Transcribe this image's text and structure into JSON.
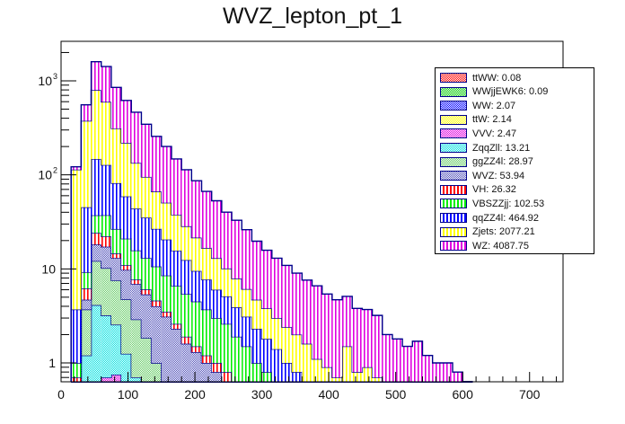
{
  "chart_data": {
    "type": "bar",
    "subtype": "stacked-histogram",
    "title": "WVZ_lepton_pt_1",
    "xlabel": "",
    "ylabel": "",
    "xlim": [
      0,
      750
    ],
    "ylim": [
      0.63,
      2630
    ],
    "yscale": "log",
    "x_ticks": [
      "0",
      "100",
      "200",
      "300",
      "400",
      "500",
      "600",
      "700"
    ],
    "y_ticks": [
      {
        "value": 1,
        "label": "1"
      },
      {
        "value": 10,
        "label": "10"
      },
      {
        "value": 100,
        "label": "10",
        "exp": "2"
      },
      {
        "value": 1000,
        "label": "10",
        "exp": "3"
      }
    ],
    "bin_edges_start": 15,
    "bin_width": 15,
    "legend_position": "top-right",
    "series": [
      {
        "name": "ttWW",
        "label": "ttWW: 0.08",
        "color": "#ff0000",
        "pattern": "hatch",
        "values": [
          0,
          0,
          0,
          0,
          0,
          0,
          0,
          0,
          0,
          0,
          0,
          0,
          0,
          0,
          0,
          0,
          0,
          0,
          0,
          0,
          0,
          0,
          0,
          0,
          0,
          0,
          0,
          0,
          0,
          0,
          0,
          0,
          0,
          0,
          0,
          0,
          0,
          0,
          0,
          0
        ]
      },
      {
        "name": "WWjjEWK6",
        "label": "WWjjEWK6: 0.09",
        "color": "#00cc00",
        "pattern": "hatch",
        "values": [
          0,
          0,
          0,
          0,
          0,
          0,
          0,
          0,
          0,
          0,
          0,
          0,
          0,
          0,
          0,
          0,
          0,
          0,
          0,
          0,
          0,
          0,
          0,
          0,
          0,
          0,
          0,
          0,
          0,
          0,
          0,
          0,
          0,
          0,
          0,
          0,
          0,
          0,
          0,
          0
        ]
      },
      {
        "name": "WW",
        "label": "WW: 2.07",
        "color": "#0000ff",
        "pattern": "hatch",
        "values": [
          0,
          0,
          0.1,
          0.1,
          0.1,
          0.05,
          0,
          0,
          0,
          0,
          0,
          0,
          0,
          0,
          0,
          0,
          0,
          0,
          0,
          0,
          0,
          0,
          0,
          0,
          0,
          0,
          0,
          0,
          0,
          0,
          0,
          0,
          0,
          0,
          0,
          0,
          0,
          0,
          0,
          0
        ]
      },
      {
        "name": "ttW",
        "label": "ttW: 2.14",
        "color": "#ffff00",
        "pattern": "hatch",
        "values": [
          0,
          0,
          0.02,
          0.05,
          0.3,
          0.05,
          0.05,
          0,
          0,
          0,
          0,
          0,
          0,
          0,
          0,
          0,
          0,
          0,
          0,
          0,
          0,
          0,
          0,
          0,
          0,
          0,
          0,
          0,
          0,
          0,
          0,
          0,
          0,
          0,
          0,
          0,
          0,
          0,
          0,
          0
        ]
      },
      {
        "name": "VVV",
        "label": "VVV: 2.47",
        "color": "#e000e0",
        "pattern": "hatch",
        "values": [
          0,
          0,
          0.4,
          0.55,
          0.35,
          0.15,
          0.05,
          0.05,
          0,
          0,
          0,
          0,
          0,
          0,
          0,
          0,
          0,
          0,
          0,
          0,
          0,
          0,
          0,
          0,
          0,
          0,
          0,
          0,
          0,
          0,
          0,
          0,
          0,
          0,
          0,
          0,
          0,
          0,
          0,
          0
        ]
      },
      {
        "name": "ZqqZll",
        "label": "ZqqZll: 13.21",
        "color": "#00e0e0",
        "pattern": "hatch",
        "values": [
          0,
          1.2,
          3.6,
          2.5,
          1.8,
          1.0,
          0.6,
          0.3,
          0,
          0,
          0,
          0,
          0,
          0,
          0,
          0,
          0,
          0,
          0,
          0,
          0,
          0,
          0,
          0,
          0,
          0,
          0,
          0,
          0,
          0,
          0,
          0,
          0,
          0,
          0,
          0,
          0,
          0,
          0,
          0
        ]
      },
      {
        "name": "ggZZ4l",
        "label": "ggZZ4l: 28.97",
        "color": "#66cc66",
        "pattern": "hatch",
        "values": [
          0,
          2.5,
          8,
          7,
          5,
          3.5,
          2.2,
          1.5,
          1.0,
          0.6,
          0.3,
          0,
          0,
          0,
          0,
          0,
          0,
          0,
          0,
          0,
          0,
          0,
          0,
          0,
          0,
          0,
          0,
          0,
          0,
          0,
          0,
          0,
          0,
          0,
          0,
          0,
          0,
          0,
          0,
          0
        ]
      },
      {
        "name": "WVZ",
        "label": "WVZ: 53.94",
        "color": "#5555bb",
        "pattern": "hatch",
        "values": [
          0,
          1,
          6,
          7,
          5.5,
          5,
          4,
          3.5,
          3,
          2.5,
          2,
          1.6,
          1.3,
          1,
          0.8,
          0.6,
          0.3,
          0.2,
          0,
          0,
          0,
          0,
          0,
          0,
          0,
          0,
          0,
          0,
          0,
          0,
          0,
          0,
          0,
          0,
          0,
          0,
          0,
          0,
          0,
          0
        ]
      },
      {
        "name": "VH",
        "label": "VH: 26.32",
        "color": "#ff0000",
        "pattern": "vlines",
        "values": [
          0.7,
          1.5,
          6,
          5,
          1.5,
          1.2,
          0.8,
          0.7,
          0.6,
          0.4,
          0.3,
          0.3,
          0.2,
          0.2,
          0.2,
          0.2,
          0.2,
          0.1,
          0,
          0,
          0,
          0,
          0,
          0,
          0,
          0,
          0,
          0,
          0,
          0,
          0,
          0,
          0,
          0,
          0,
          0,
          0,
          0,
          0,
          0
        ]
      },
      {
        "name": "VBSZZjj",
        "label": "VBSZZjj: 102.53",
        "color": "#00ee00",
        "pattern": "vlines",
        "values": [
          0.3,
          3,
          13,
          15,
          12,
          10,
          8,
          7,
          6,
          5,
          4,
          3.5,
          3,
          2.5,
          2,
          1.8,
          1.4,
          1.2,
          1,
          0.8,
          0.6,
          0.4,
          0.3,
          0.2,
          0,
          0,
          0,
          0,
          0,
          0,
          0,
          0,
          0,
          0,
          0,
          0,
          0,
          0,
          0,
          0
        ]
      },
      {
        "name": "qqZZ4l",
        "label": "qqZZ4l: 464.92",
        "color": "#0000ff",
        "pattern": "vlines",
        "values": [
          2.7,
          36,
          110,
          90,
          55,
          38,
          28,
          22,
          16,
          12,
          9,
          7,
          5,
          4,
          3,
          2.5,
          2,
          1.6,
          1.3,
          1,
          0.8,
          0.6,
          0.5,
          0.4,
          0.3,
          0.2,
          0,
          0,
          0,
          0,
          0,
          0,
          0,
          0,
          0,
          0,
          0,
          0,
          0,
          0
        ]
      },
      {
        "name": "Zjets",
        "label": "Zjets: 2077.21",
        "color": "#ffff00",
        "pattern": "vlines",
        "values": [
          110,
          330,
          650,
          470,
          230,
          160,
          90,
          60,
          40,
          30,
          22,
          16,
          12,
          9,
          7,
          5,
          4,
          3,
          2.4,
          2,
          1.6,
          1.4,
          1.2,
          1,
          0.8,
          0.7,
          0.7,
          1.5,
          0.8,
          0.9,
          0.7,
          0,
          0,
          0,
          0,
          0,
          0,
          0,
          0,
          0
        ]
      },
      {
        "name": "WZ",
        "label": "WZ: 4087.75",
        "color": "#e000e0",
        "pattern": "vlines",
        "values": [
          8,
          180,
          800,
          820,
          540,
          400,
          330,
          250,
          190,
          150,
          110,
          85,
          65,
          50,
          40,
          30,
          25,
          20,
          15,
          12,
          10,
          8.5,
          7,
          6,
          5.5,
          4.5,
          4,
          3.6,
          3,
          2.8,
          2.5,
          2,
          1.8,
          1.5,
          1.7,
          1.2,
          1.0,
          1.0,
          0.8,
          0.3
        ]
      }
    ]
  }
}
